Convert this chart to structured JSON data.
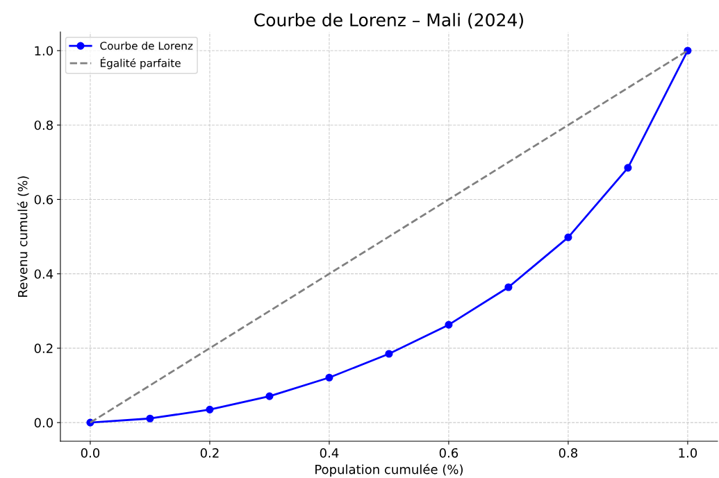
{
  "chart_data": {
    "type": "line",
    "title": "Courbe de Lorenz – Mali (2024)",
    "xlabel": "Population cumulée (%)",
    "ylabel": "Revenu cumulé (%)",
    "x": [
      0.0,
      0.1,
      0.2,
      0.3,
      0.4,
      0.5,
      0.6,
      0.7,
      0.8,
      0.9,
      1.0
    ],
    "series": [
      {
        "name": "Courbe de Lorenz",
        "color": "#0000ff",
        "values": [
          0.0,
          0.011,
          0.035,
          0.071,
          0.121,
          0.185,
          0.263,
          0.364,
          0.498,
          0.685,
          1.0
        ],
        "marker": "circle",
        "line_style": "solid"
      },
      {
        "name": "Égalité parfaite",
        "color": "#808080",
        "x": [
          0.0,
          1.0
        ],
        "values": [
          0.0,
          1.0
        ],
        "marker": "none",
        "line_style": "dashed"
      }
    ],
    "xlim": [
      -0.05,
      1.05
    ],
    "ylim": [
      -0.05,
      1.05
    ],
    "xticks": [
      {
        "value": 0.0,
        "label": "0.0"
      },
      {
        "value": 0.2,
        "label": "0.2"
      },
      {
        "value": 0.4,
        "label": "0.4"
      },
      {
        "value": 0.6,
        "label": "0.6"
      },
      {
        "value": 0.8,
        "label": "0.8"
      },
      {
        "value": 1.0,
        "label": "1.0"
      }
    ],
    "yticks": [
      {
        "value": 0.0,
        "label": "0.0"
      },
      {
        "value": 0.2,
        "label": "0.2"
      },
      {
        "value": 0.4,
        "label": "0.4"
      },
      {
        "value": 0.6,
        "label": "0.6"
      },
      {
        "value": 0.8,
        "label": "0.8"
      },
      {
        "value": 1.0,
        "label": "1.0"
      }
    ],
    "grid": true,
    "legend": "top left"
  }
}
